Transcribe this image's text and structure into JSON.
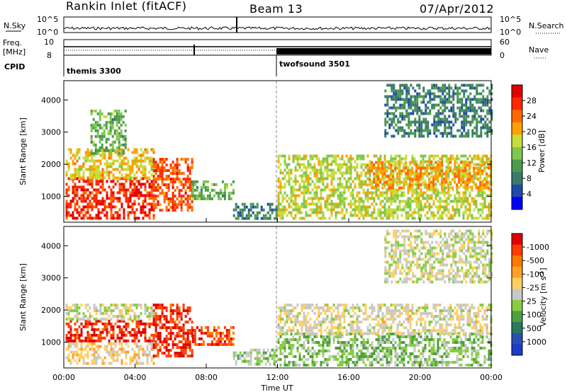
{
  "header": {
    "station": "Rankin Inlet (fitACF)",
    "beam": "Beam 13",
    "date": "07/Apr/2012"
  },
  "strip_panels": {
    "nsky_label": "N.Sky",
    "nsky_ticks": [
      "10^5",
      "10^0"
    ],
    "nsearch_label": "N.Search",
    "nsearch_ticks": [
      "10^5",
      "10^0"
    ],
    "freq_label_1": "Freq.",
    "freq_label_2": "[MHz]",
    "freq_ticks": [
      "10",
      "8"
    ],
    "nave_label": "Nave",
    "nave_ticks": [
      "60",
      "0"
    ],
    "cpid_label": "CPID",
    "cpid_segments": [
      {
        "name": "themis 3300",
        "start_hour": 0
      },
      {
        "name": "twofsound 3501",
        "start_hour": 12
      }
    ]
  },
  "time_axis": {
    "label": "Time UT",
    "ticks": [
      "00:00",
      "04:00",
      "08:00",
      "12:00",
      "16:00",
      "20:00",
      "00:00"
    ]
  },
  "colors": {
    "power": [
      "#0000ff",
      "#1e4aa8",
      "#3a7a6a",
      "#4c9a4c",
      "#7ec850",
      "#c8dc3c",
      "#ffa000",
      "#ff6a00",
      "#ff2800",
      "#e00000"
    ],
    "velocity": [
      "#1e3cc8",
      "#2850b4",
      "#2a7a5a",
      "#4ca040",
      "#88cc44",
      "#c8c8c8",
      "#ffd060",
      "#ffa028",
      "#ff7800",
      "#ff3c00",
      "#e00000"
    ]
  },
  "chart_data": [
    {
      "type": "heatmap",
      "title": "Power",
      "ylabel": "Slant Range [km]",
      "xlabel": "Time UT",
      "xlim": [
        0,
        24
      ],
      "ylim": [
        200,
        4600
      ],
      "yticks": [
        1000,
        2000,
        3000,
        4000
      ],
      "colorbar": {
        "label": "Power [dB]",
        "ticks": [
          4,
          8,
          12,
          16,
          20,
          24,
          28
        ],
        "range": [
          0,
          30
        ]
      },
      "regions": [
        {
          "t0": 0.1,
          "t1": 5.0,
          "r0": 300,
          "r1": 1600,
          "val": 26
        },
        {
          "t0": 0.1,
          "t1": 5.0,
          "r0": 1600,
          "r1": 2500,
          "val": 18
        },
        {
          "t0": 1.5,
          "t1": 3.5,
          "r0": 2300,
          "r1": 3700,
          "val": 12
        },
        {
          "t0": 5.0,
          "t1": 7.2,
          "r0": 600,
          "r1": 2200,
          "val": 24
        },
        {
          "t0": 7.2,
          "t1": 9.5,
          "r0": 900,
          "r1": 1500,
          "val": 12
        },
        {
          "t0": 9.5,
          "t1": 12.0,
          "r0": 300,
          "r1": 800,
          "val": 8
        },
        {
          "t0": 12.0,
          "t1": 24.0,
          "r0": 300,
          "r1": 2300,
          "val": 16
        },
        {
          "t0": 17.0,
          "t1": 24.0,
          "r0": 1300,
          "r1": 2100,
          "val": 20
        },
        {
          "t0": 18.0,
          "t1": 24.0,
          "r0": 2900,
          "r1": 4500,
          "val": 8
        }
      ]
    },
    {
      "type": "heatmap",
      "title": "Velocity",
      "ylabel": "Slant Range [km]",
      "xlabel": "Time UT",
      "xlim": [
        0,
        24
      ],
      "ylim": [
        200,
        4600
      ],
      "yticks": [
        1000,
        2000,
        3000,
        4000
      ],
      "colorbar": {
        "label": "Velocity [m s^-1]",
        "ticks": [
          "1000",
          "500",
          "100",
          "25",
          "-25",
          "-100",
          "-500",
          "-1000"
        ],
        "range": [
          -1000,
          1000
        ]
      },
      "regions": [
        {
          "t0": 0.1,
          "t1": 5.0,
          "r0": 300,
          "r1": 1000,
          "val": 150
        },
        {
          "t0": 0.1,
          "t1": 5.0,
          "r0": 1000,
          "r1": 1700,
          "val": 800
        },
        {
          "t0": 0.1,
          "t1": 5.0,
          "r0": 1700,
          "r1": 2200,
          "val": 0
        },
        {
          "t0": 5.0,
          "t1": 7.2,
          "r0": 600,
          "r1": 2200,
          "val": 800
        },
        {
          "t0": 7.2,
          "t1": 9.5,
          "r0": 900,
          "r1": 1500,
          "val": 700
        },
        {
          "t0": 9.5,
          "t1": 12.0,
          "r0": 300,
          "r1": 800,
          "val": -150
        },
        {
          "t0": 12.0,
          "t1": 24.0,
          "r0": 300,
          "r1": 1300,
          "val": -200
        },
        {
          "t0": 12.0,
          "t1": 24.0,
          "r0": 1300,
          "r1": 2200,
          "val": 60
        },
        {
          "t0": 18.0,
          "t1": 24.0,
          "r0": 2900,
          "r1": 4500,
          "val": -10
        }
      ]
    }
  ]
}
